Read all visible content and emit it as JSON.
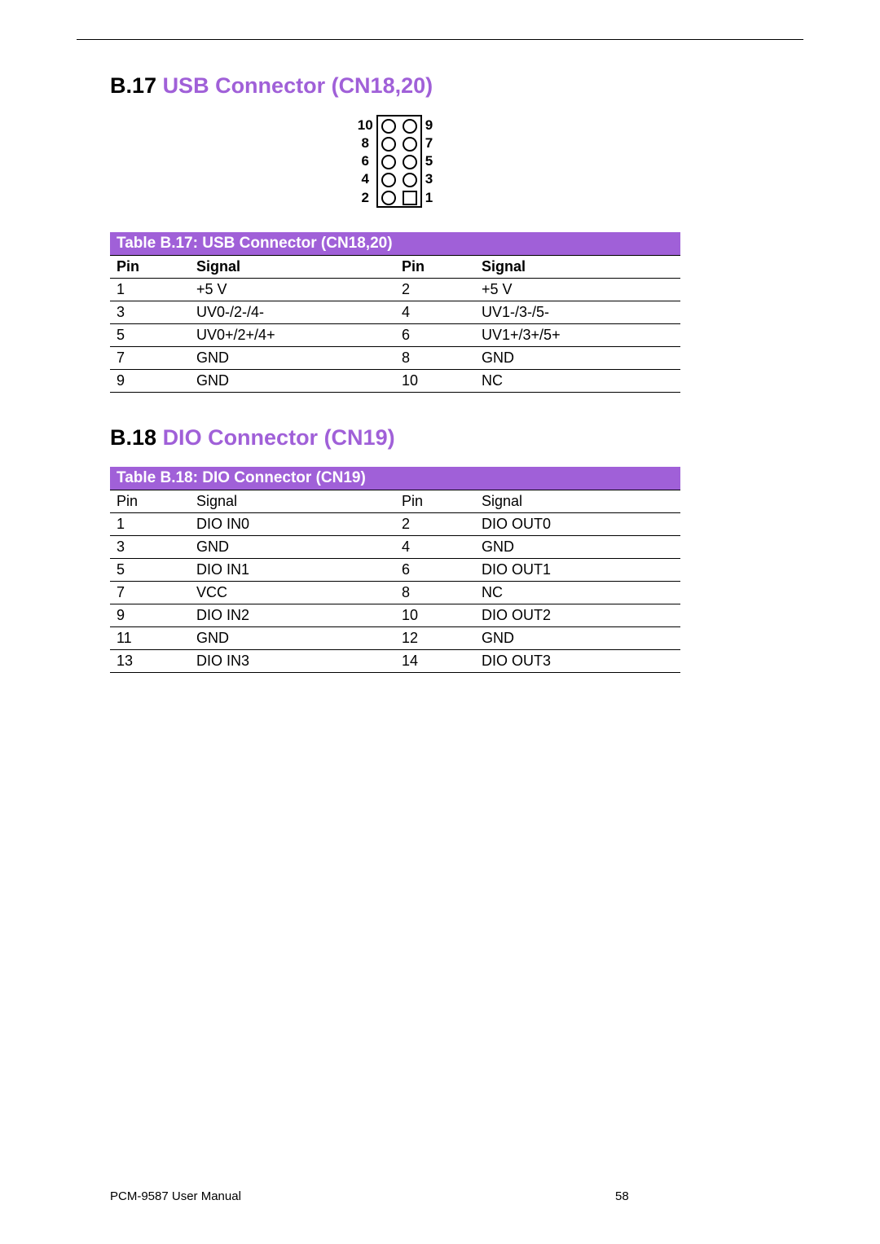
{
  "colors": {
    "accent": "#a060d8",
    "text": "#000000",
    "background": "#ffffff"
  },
  "sections": {
    "s1": {
      "num": "B.17",
      "title": "USB Connector  (CN18,20)"
    },
    "s2": {
      "num": "B.18",
      "title": "DIO Connector (CN19)"
    }
  },
  "diagram": {
    "rows": [
      {
        "left": "10",
        "right": "9"
      },
      {
        "left": "8",
        "right": "7"
      },
      {
        "left": "6",
        "right": "5"
      },
      {
        "left": "4",
        "right": "3"
      },
      {
        "left": "2",
        "right": "1"
      }
    ]
  },
  "table1": {
    "caption": "Table B.17: USB Connector (CN18,20)",
    "headers": {
      "c0": "Pin",
      "c1": "Signal",
      "c2": "Pin",
      "c3": "Signal"
    },
    "header_bold": true,
    "rows": [
      {
        "c0": "1",
        "c1": "+5 V",
        "c2": "2",
        "c3": "+5 V"
      },
      {
        "c0": "3",
        "c1": "UV0-/2-/4-",
        "c2": "4",
        "c3": "UV1-/3-/5-"
      },
      {
        "c0": "5",
        "c1": "UV0+/2+/4+",
        "c2": "6",
        "c3": "UV1+/3+/5+"
      },
      {
        "c0": "7",
        "c1": "GND",
        "c2": "8",
        "c3": "GND"
      },
      {
        "c0": "9",
        "c1": "GND",
        "c2": "10",
        "c3": "NC"
      }
    ]
  },
  "table2": {
    "caption": "Table B.18: DIO Connector (CN19)",
    "headers": {
      "c0": "Pin",
      "c1": "Signal",
      "c2": "Pin",
      "c3": "Signal"
    },
    "header_bold": false,
    "rows": [
      {
        "c0": "1",
        "c1": "DIO IN0",
        "c2": "2",
        "c3": "DIO OUT0"
      },
      {
        "c0": "3",
        "c1": "GND",
        "c2": "4",
        "c3": "GND"
      },
      {
        "c0": "5",
        "c1": "DIO IN1",
        "c2": "6",
        "c3": "DIO OUT1"
      },
      {
        "c0": "7",
        "c1": "VCC",
        "c2": "8",
        "c3": "NC"
      },
      {
        "c0": "9",
        "c1": "DIO IN2",
        "c2": "10",
        "c3": "DIO OUT2"
      },
      {
        "c0": "11",
        "c1": "GND",
        "c2": "12",
        "c3": "GND"
      },
      {
        "c0": "13",
        "c1": "DIO IN3",
        "c2": "14",
        "c3": "DIO OUT3"
      }
    ]
  },
  "footer": {
    "manual": "PCM-9587 User Manual",
    "page": "58"
  }
}
